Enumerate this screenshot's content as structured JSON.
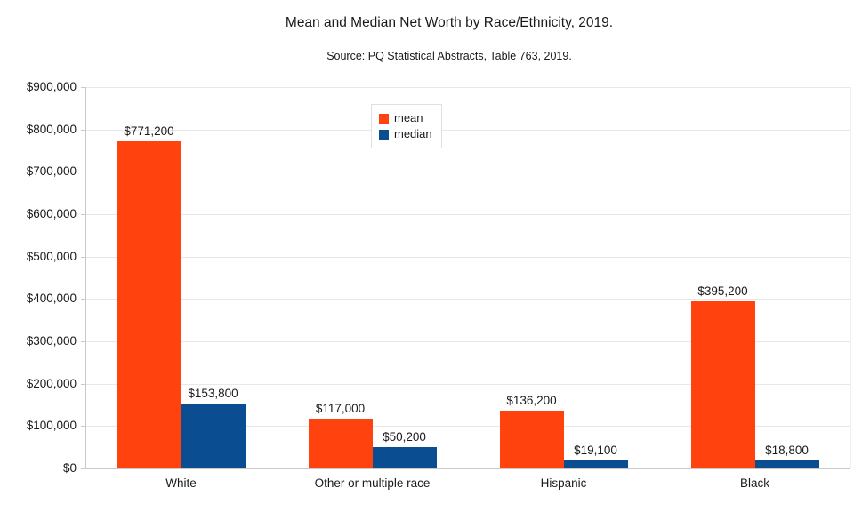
{
  "page": {
    "background": "#ffffff",
    "text_color": "#1a1a1a"
  },
  "chart_data": {
    "type": "bar",
    "title": "Mean and Median Net Worth by Race/Ethnicity, 2019.",
    "subtitle": "Source: PQ Statistical Abstracts, Table 763, 2019.",
    "categories": [
      "White",
      "Other or multiple race",
      "Hispanic",
      "Black"
    ],
    "series": [
      {
        "name": "mean",
        "color": "#ff420e",
        "values": [
          771200,
          117000,
          136200,
          395200
        ],
        "labels": [
          "$771,200",
          "$117,000",
          "$136,200",
          "$395,200"
        ]
      },
      {
        "name": "median",
        "color": "#0b4d91",
        "values": [
          153800,
          50200,
          19100,
          18800
        ],
        "labels": [
          "$153,800",
          "$50,200",
          "$19,100",
          "$18,800"
        ]
      }
    ],
    "xlabel": "",
    "ylabel": "",
    "ylim": [
      0,
      900000
    ],
    "ytick_step": 100000,
    "y_tick_labels": [
      "$0",
      "$100,000",
      "$200,000",
      "$300,000",
      "$400,000",
      "$500,000",
      "$600,000",
      "$700,000",
      "$800,000",
      "$900,000"
    ],
    "grid": true,
    "legend": {
      "position": "top-center",
      "entries": [
        "mean",
        "median"
      ]
    }
  }
}
